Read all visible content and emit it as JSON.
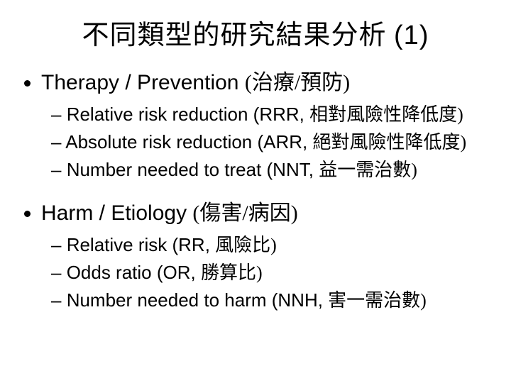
{
  "title": {
    "main": "不同類型的研究結果分析 ",
    "num": "(1)"
  },
  "sections": [
    {
      "heading_en": "Therapy / Prevention ",
      "heading_cjk": "(治療/預防)",
      "items": [
        {
          "en": "Relative risk reduction (RRR, ",
          "cjk": "相對風險性降低度)"
        },
        {
          "en": "Absolute risk reduction (ARR, ",
          "cjk": "絕對風險性降低度)"
        },
        {
          "en": "Number needed to treat (NNT, ",
          "cjk": "益一需治數)"
        }
      ]
    },
    {
      "heading_en": "Harm / Etiology ",
      "heading_cjk": "(傷害/病因)",
      "items": [
        {
          "en": "Relative risk (RR, ",
          "cjk": "風險比)"
        },
        {
          "en": "Odds ratio (OR, ",
          "cjk": "勝算比)"
        },
        {
          "en": "Number needed to harm (NNH, ",
          "cjk": "害一需治數)"
        }
      ]
    }
  ]
}
